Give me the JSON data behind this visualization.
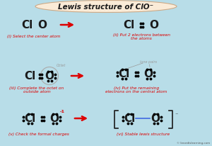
{
  "title": "Lewis structure of ClO⁻",
  "bg_color": "#b8dde8",
  "title_bg": "#faebd7",
  "red": "#dd0000",
  "black": "#1a1a1a",
  "gray": "#999999",
  "blue": "#4169e1",
  "step_labels": [
    "(i) Select the center atom",
    "(ii) Put 2 electrons between\nthe atoms",
    "(iii) Complete the octet on\noutside atom",
    "(iv) Put the remaining\nelectrons on the central atom",
    "(v) Check the formal charges",
    "(vi) Stable lewis structure"
  ]
}
